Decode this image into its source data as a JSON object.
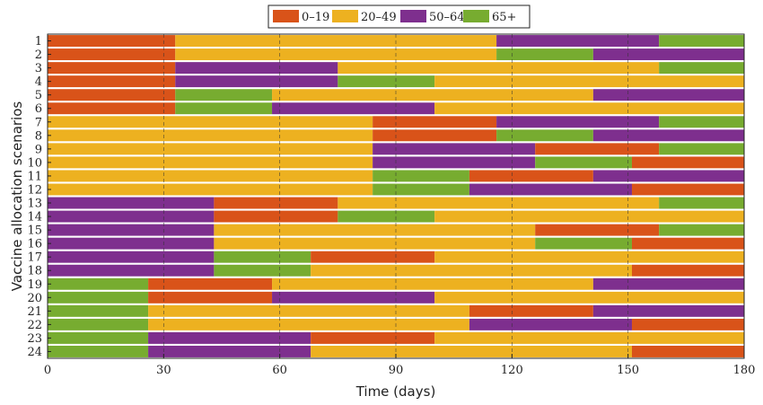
{
  "chart_data": {
    "type": "bar",
    "orientation": "horizontal-stacked",
    "title": "",
    "xlabel": "Time (days)",
    "ylabel": "Vaccine allocation scenarios",
    "xlim": [
      0,
      180
    ],
    "xticks": [
      0,
      30,
      60,
      90,
      120,
      150,
      180
    ],
    "grid": "vertical dashed",
    "legend_position": "top-center",
    "groups": [
      {
        "name": "0–19",
        "color": "#D95319"
      },
      {
        "name": "20–49",
        "color": "#EDB120"
      },
      {
        "name": "50–64",
        "color": "#7E2F8E"
      },
      {
        "name": "65+",
        "color": "#77AC30"
      }
    ],
    "scenarios": [
      {
        "label": "1",
        "segments": [
          [
            0,
            33,
            "0–19"
          ],
          [
            33,
            116,
            "20–49"
          ],
          [
            116,
            158,
            "50–64"
          ],
          [
            158,
            180,
            "65+"
          ]
        ]
      },
      {
        "label": "2",
        "segments": [
          [
            0,
            33,
            "0–19"
          ],
          [
            33,
            116,
            "20–49"
          ],
          [
            116,
            141,
            "65+"
          ],
          [
            141,
            180,
            "50–64"
          ]
        ]
      },
      {
        "label": "3",
        "segments": [
          [
            0,
            33,
            "0–19"
          ],
          [
            33,
            75,
            "50–64"
          ],
          [
            75,
            158,
            "20–49"
          ],
          [
            158,
            180,
            "65+"
          ]
        ]
      },
      {
        "label": "4",
        "segments": [
          [
            0,
            33,
            "0–19"
          ],
          [
            33,
            75,
            "50–64"
          ],
          [
            75,
            100,
            "65+"
          ],
          [
            100,
            180,
            "20–49"
          ]
        ]
      },
      {
        "label": "5",
        "segments": [
          [
            0,
            33,
            "0–19"
          ],
          [
            33,
            58,
            "65+"
          ],
          [
            58,
            141,
            "20–49"
          ],
          [
            141,
            180,
            "50–64"
          ]
        ]
      },
      {
        "label": "6",
        "segments": [
          [
            0,
            33,
            "0–19"
          ],
          [
            33,
            58,
            "65+"
          ],
          [
            58,
            100,
            "50–64"
          ],
          [
            100,
            180,
            "20–49"
          ]
        ]
      },
      {
        "label": "7",
        "segments": [
          [
            0,
            84,
            "20–49"
          ],
          [
            84,
            116,
            "0–19"
          ],
          [
            116,
            158,
            "50–64"
          ],
          [
            158,
            180,
            "65+"
          ]
        ]
      },
      {
        "label": "8",
        "segments": [
          [
            0,
            84,
            "20–49"
          ],
          [
            84,
            116,
            "0–19"
          ],
          [
            116,
            141,
            "65+"
          ],
          [
            141,
            180,
            "50–64"
          ]
        ]
      },
      {
        "label": "9",
        "segments": [
          [
            0,
            84,
            "20–49"
          ],
          [
            84,
            126,
            "50–64"
          ],
          [
            126,
            158,
            "0–19"
          ],
          [
            158,
            180,
            "65+"
          ]
        ]
      },
      {
        "label": "10",
        "segments": [
          [
            0,
            84,
            "20–49"
          ],
          [
            84,
            126,
            "50–64"
          ],
          [
            126,
            151,
            "65+"
          ],
          [
            151,
            180,
            "0–19"
          ]
        ]
      },
      {
        "label": "11",
        "segments": [
          [
            0,
            84,
            "20–49"
          ],
          [
            84,
            109,
            "65+"
          ],
          [
            109,
            141,
            "0–19"
          ],
          [
            141,
            180,
            "50–64"
          ]
        ]
      },
      {
        "label": "12",
        "segments": [
          [
            0,
            84,
            "20–49"
          ],
          [
            84,
            109,
            "65+"
          ],
          [
            109,
            151,
            "50–64"
          ],
          [
            151,
            180,
            "0–19"
          ]
        ]
      },
      {
        "label": "13",
        "segments": [
          [
            0,
            43,
            "50–64"
          ],
          [
            43,
            75,
            "0–19"
          ],
          [
            75,
            158,
            "20–49"
          ],
          [
            158,
            180,
            "65+"
          ]
        ]
      },
      {
        "label": "14",
        "segments": [
          [
            0,
            43,
            "50–64"
          ],
          [
            43,
            75,
            "0–19"
          ],
          [
            75,
            100,
            "65+"
          ],
          [
            100,
            180,
            "20–49"
          ]
        ]
      },
      {
        "label": "15",
        "segments": [
          [
            0,
            43,
            "50–64"
          ],
          [
            43,
            126,
            "20–49"
          ],
          [
            126,
            158,
            "0–19"
          ],
          [
            158,
            180,
            "65+"
          ]
        ]
      },
      {
        "label": "16",
        "segments": [
          [
            0,
            43,
            "50–64"
          ],
          [
            43,
            126,
            "20–49"
          ],
          [
            126,
            151,
            "65+"
          ],
          [
            151,
            180,
            "0–19"
          ]
        ]
      },
      {
        "label": "17",
        "segments": [
          [
            0,
            43,
            "50–64"
          ],
          [
            43,
            68,
            "65+"
          ],
          [
            68,
            100,
            "0–19"
          ],
          [
            100,
            180,
            "20–49"
          ]
        ]
      },
      {
        "label": "18",
        "segments": [
          [
            0,
            43,
            "50–64"
          ],
          [
            43,
            68,
            "65+"
          ],
          [
            68,
            151,
            "20–49"
          ],
          [
            151,
            180,
            "0–19"
          ]
        ]
      },
      {
        "label": "19",
        "segments": [
          [
            0,
            26,
            "65+"
          ],
          [
            26,
            58,
            "0–19"
          ],
          [
            58,
            141,
            "20–49"
          ],
          [
            141,
            180,
            "50–64"
          ]
        ]
      },
      {
        "label": "20",
        "segments": [
          [
            0,
            26,
            "65+"
          ],
          [
            26,
            58,
            "0–19"
          ],
          [
            58,
            100,
            "50–64"
          ],
          [
            100,
            180,
            "20–49"
          ]
        ]
      },
      {
        "label": "21",
        "segments": [
          [
            0,
            26,
            "65+"
          ],
          [
            26,
            109,
            "20–49"
          ],
          [
            109,
            141,
            "0–19"
          ],
          [
            141,
            180,
            "50–64"
          ]
        ]
      },
      {
        "label": "22",
        "segments": [
          [
            0,
            26,
            "65+"
          ],
          [
            26,
            109,
            "20–49"
          ],
          [
            109,
            151,
            "50–64"
          ],
          [
            151,
            180,
            "0–19"
          ]
        ]
      },
      {
        "label": "23",
        "segments": [
          [
            0,
            26,
            "65+"
          ],
          [
            26,
            68,
            "50–64"
          ],
          [
            68,
            100,
            "0–19"
          ],
          [
            100,
            180,
            "20–49"
          ]
        ]
      },
      {
        "label": "24",
        "segments": [
          [
            0,
            26,
            "65+"
          ],
          [
            26,
            68,
            "50–64"
          ],
          [
            68,
            151,
            "20–49"
          ],
          [
            151,
            180,
            "0–19"
          ]
        ]
      }
    ]
  }
}
